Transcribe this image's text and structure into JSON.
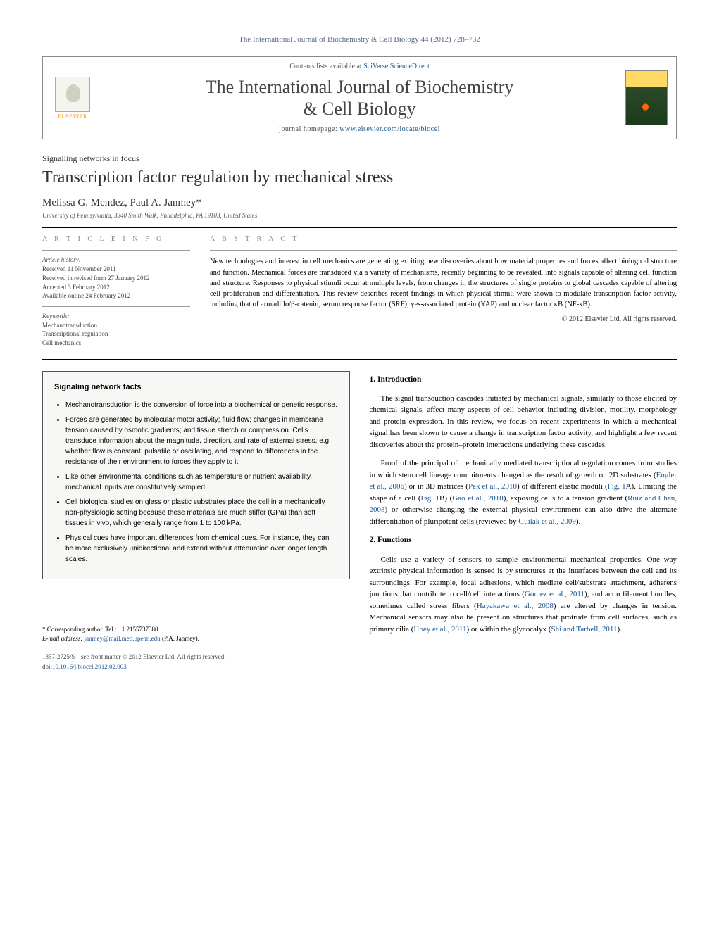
{
  "topHeader": "The International Journal of Biochemistry & Cell Biology 44 (2012) 728–732",
  "journalBox": {
    "elsevierLabel": "ELSEVIER",
    "contentsPrefix": "Contents lists available at ",
    "contentsLink": "SciVerse ScienceDirect",
    "journalName1": "The International Journal of Biochemistry",
    "journalName2": "& Cell Biology",
    "homepagePrefix": "journal homepage: ",
    "homepageLink": "www.elsevier.com/locate/biocel"
  },
  "sectionLabel": "Signalling networks in focus",
  "articleTitle": "Transcription factor regulation by mechanical stress",
  "authors": "Melissa G. Mendez, Paul A. Janmey",
  "authorStar": "*",
  "affiliation": "University of Pennsylvania, 3340 Smith Walk, Philadelphia, PA 19103, United States",
  "articleInfo": {
    "heading": "A R T I C L E    I N F O",
    "historyLabel": "Article history:",
    "received": "Received 11 November 2011",
    "revised": "Received in revised form 27 January 2012",
    "accepted": "Accepted 3 February 2012",
    "online": "Available online 24 February 2012",
    "keywordsLabel": "Keywords:",
    "kw1": "Mechanotransduction",
    "kw2": "Transcriptional regulation",
    "kw3": "Cell mechanics"
  },
  "abstract": {
    "heading": "A B S T R A C T",
    "text": "New technologies and interest in cell mechanics are generating exciting new discoveries about how material properties and forces affect biological structure and function. Mechanical forces are transduced via a variety of mechanisms, recently beginning to be revealed, into signals capable of altering cell function and structure. Responses to physical stimuli occur at multiple levels, from changes in the structures of single proteins to global cascades capable of altering cell proliferation and differentiation. This review describes recent findings in which physical stimuli were shown to modulate transcription factor activity, including that of armadillo/β-catenin, serum response factor (SRF), yes-associated protein (YAP) and nuclear factor κB (NF-κB).",
    "copyright": "© 2012 Elsevier Ltd. All rights reserved."
  },
  "factsBox": {
    "title": "Signaling network facts",
    "items": [
      "Mechanotransduction is the conversion of force into a biochemical or genetic response.",
      "Forces are generated by molecular motor activity; fluid flow; changes in membrane tension caused by osmotic gradients; and tissue stretch or compression. Cells transduce information about the magnitude, direction, and rate of external stress, e.g. whether flow is constant, pulsatile or oscillating, and respond to differences in the resistance of their environment to forces they apply to it.",
      "Like other environmental conditions such as temperature or nutrient availability, mechanical inputs are constitutively sampled.",
      "Cell biological studies on glass or plastic substrates place the cell in a mechanically non-physiologic setting because these materials are much stiffer (GPa) than soft tissues in vivo, which generally range from 1 to 100 kPa.",
      "Physical cues have important differences from chemical cues. For instance, they can be more exclusively unidirectional and extend without attenuation over longer length scales."
    ]
  },
  "intro": {
    "heading": "1.  Introduction",
    "p1a": "The signal transduction cascades initiated by mechanical signals, similarly to those elicited by chemical signals, affect many aspects of cell behavior including division, motility, morphology and protein expression. In this review, we focus on recent experiments in which a mechanical signal has been shown to cause a change in transcription factor activity, and highlight a few recent discoveries about the protein–protein interactions underlying these cascades.",
    "p2a": "Proof of the principal of mechanically mediated transcriptional regulation comes from studies in which stem cell lineage commitments changed as the result of growth on 2D substrates (",
    "p2r1": "Engler et al., 2006",
    "p2b": ") or in 3D matrices (",
    "p2r2": "Pek et al., 2010",
    "p2c": ") of different elastic moduli (",
    "p2r3": "Fig. 1",
    "p2d": "A). Limiting the shape of a cell (",
    "p2r4": "Fig. 1",
    "p2e": "B) (",
    "p2r5": "Gao et al., 2010",
    "p2f": "), exposing cells to a tension gradient (",
    "p2r6": "Ruiz and Chen, 2008",
    "p2g": ") or otherwise changing the external physical environment can also drive the alternate differentiation of pluripotent cells (reviewed by ",
    "p2r7": "Guilak et al., 2009",
    "p2h": ")."
  },
  "functions": {
    "heading": "2.  Functions",
    "p1a": "Cells use a variety of sensors to sample environmental mechanical properties. One way extrinsic physical information is sensed is by structures at the interfaces between the cell and its surroundings. For example, focal adhesions, which mediate cell/substrate attachment, adherens junctions that contribute to cell/cell interactions (",
    "p1r1": "Gomez et al., 2011",
    "p1b": "), and actin filament bundles, sometimes called stress fibers (",
    "p1r2": "Hayakawa et al., 2008",
    "p1c": ") are altered by changes in tension. Mechanical sensors may also be present on structures that protrude from cell surfaces, such as primary cilia (",
    "p1r3": "Hoey et al., 2011",
    "p1d": ") or within the glycocalyx (",
    "p1r4": "Shi and Tarbell, 2011",
    "p1e": ")."
  },
  "corresponding": {
    "star": "*",
    "label": " Corresponding author. Tel.: +1 2155737380.",
    "emailLabel": "E-mail address: ",
    "email": "janmey@mail.med.upenn.edu",
    "emailSuffix": " (P.A. Janmey)."
  },
  "bottom": {
    "line1": "1357-2725/$ – see front matter © 2012 Elsevier Ltd. All rights reserved.",
    "doiLabel": "doi:",
    "doi": "10.1016/j.biocel.2012.02.003"
  },
  "colors": {
    "link": "#1a5490",
    "headerBlue": "#5b6b8d",
    "elsevierOrange": "#ff8c00"
  }
}
